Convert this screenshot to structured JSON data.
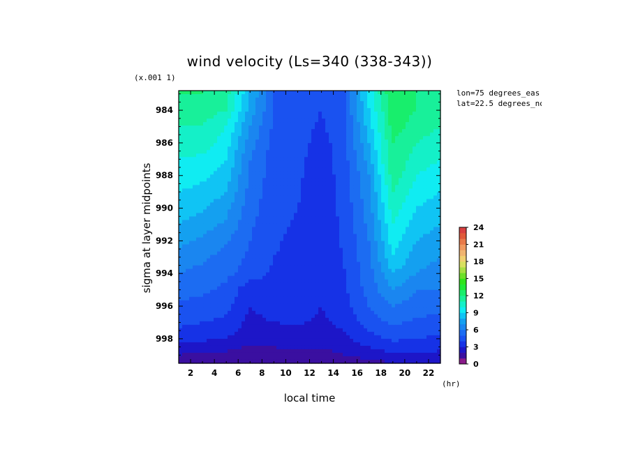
{
  "chart_data": {
    "type": "heatmap",
    "title": "wind velocity (Ls=340 (338-343))",
    "xlabel": "local time",
    "ylabel": "sigma at layer midpoints",
    "x_unit": "(hr)",
    "y_multiplier": "(x.001 1)",
    "annotations": [
      "lon=75 degrees_eas",
      "lat=22.5 degrees_no"
    ],
    "xlim": [
      1,
      23
    ],
    "ylim": [
      999.5,
      982.8
    ],
    "x_ticks": [
      "2",
      "4",
      "6",
      "8",
      "10",
      "12",
      "14",
      "16",
      "18",
      "20",
      "22"
    ],
    "y_ticks": [
      "984",
      "986",
      "988",
      "990",
      "992",
      "994",
      "996",
      "998"
    ],
    "x": [
      1,
      3,
      5,
      7,
      9,
      11,
      13,
      15,
      17,
      19,
      21,
      23
    ],
    "y": [
      983,
      984,
      985,
      986,
      987,
      988,
      989,
      990,
      991,
      992,
      993,
      994,
      995,
      996,
      997,
      998,
      999,
      999.5
    ],
    "z": [
      [
        12.0,
        12.0,
        11.5,
        8.0,
        5.0,
        4.5,
        4.5,
        5.0,
        9.5,
        13.0,
        12.0,
        11.5
      ],
      [
        11.5,
        11.5,
        11.0,
        7.5,
        5.0,
        4.5,
        4.0,
        5.0,
        9.0,
        12.5,
        12.0,
        11.5
      ],
      [
        11.0,
        11.0,
        10.0,
        7.0,
        4.8,
        4.5,
        3.8,
        5.0,
        8.5,
        12.5,
        11.5,
        11.0
      ],
      [
        10.5,
        10.5,
        9.5,
        6.5,
        4.6,
        4.5,
        3.5,
        4.8,
        8.0,
        12.0,
        11.0,
        10.5
      ],
      [
        10.0,
        9.8,
        9.0,
        6.0,
        4.5,
        4.3,
        3.4,
        4.7,
        7.5,
        12.0,
        10.5,
        10.0
      ],
      [
        9.5,
        9.2,
        8.5,
        5.8,
        4.5,
        4.2,
        3.3,
        4.6,
        7.0,
        11.5,
        10.0,
        9.5
      ],
      [
        9.0,
        8.7,
        8.0,
        5.6,
        4.4,
        4.1,
        3.3,
        4.5,
        6.8,
        11.0,
        9.5,
        9.0
      ],
      [
        8.5,
        8.2,
        7.3,
        5.4,
        4.3,
        4.0,
        3.3,
        4.4,
        6.5,
        10.5,
        9.0,
        8.5
      ],
      [
        8.0,
        7.5,
        6.8,
        5.2,
        4.2,
        3.9,
        3.3,
        4.3,
        6.3,
        10.0,
        8.5,
        8.0
      ],
      [
        7.3,
        6.8,
        6.1,
        5.0,
        4.1,
        3.8,
        3.3,
        4.2,
        6.0,
        9.5,
        8.0,
        7.5
      ],
      [
        6.5,
        6.2,
        5.6,
        4.8,
        4.0,
        3.8,
        3.2,
        4.1,
        5.8,
        9.0,
        7.5,
        7.0
      ],
      [
        6.0,
        5.7,
        5.2,
        4.6,
        3.8,
        3.8,
        3.2,
        4.0,
        5.6,
        8.0,
        7.0,
        6.5
      ],
      [
        5.5,
        5.2,
        4.8,
        3.2,
        3.7,
        3.7,
        3.1,
        3.9,
        5.4,
        7.0,
        6.0,
        6.0
      ],
      [
        4.8,
        4.6,
        4.3,
        3.0,
        3.5,
        3.5,
        3.0,
        3.7,
        5.0,
        6.0,
        5.5,
        5.4
      ],
      [
        4.2,
        4.0,
        3.8,
        2.7,
        3.0,
        3.1,
        2.8,
        3.3,
        4.5,
        5.2,
        4.8,
        4.6
      ],
      [
        3.5,
        3.2,
        3.0,
        2.3,
        2.4,
        2.6,
        2.4,
        2.8,
        3.6,
        4.2,
        4.0,
        3.8
      ],
      [
        2.0,
        1.7,
        1.7,
        1.5,
        1.6,
        1.8,
        1.7,
        2.0,
        2.4,
        2.8,
        2.8,
        2.7
      ],
      [
        1.2,
        1.0,
        1.0,
        0.9,
        1.0,
        1.2,
        1.1,
        1.3,
        1.6,
        1.9,
        1.9,
        1.8
      ]
    ],
    "colorbar": {
      "tick_labels": [
        "0",
        "3",
        "6",
        "9",
        "12",
        "15",
        "18",
        "21",
        "24"
      ],
      "levels": [
        0,
        1,
        2,
        3,
        4,
        5,
        6,
        7,
        8,
        9,
        10,
        11,
        12,
        13,
        14,
        15,
        16,
        17,
        18,
        19,
        20,
        21,
        22,
        23,
        24
      ],
      "colors": [
        "#8a1a8a",
        "#3a0fa0",
        "#1d16c8",
        "#1632e6",
        "#1a52f0",
        "#1c6cf2",
        "#1a86f0",
        "#14a0f0",
        "#10c4f4",
        "#10ecf2",
        "#14f0c8",
        "#18f09a",
        "#18ee6c",
        "#20ea38",
        "#30e41c",
        "#6ee02a",
        "#a8e044",
        "#d8e060",
        "#f0d070",
        "#f0b470",
        "#f09a60",
        "#e87a4a",
        "#e05a3a",
        "#d84040"
      ]
    }
  }
}
